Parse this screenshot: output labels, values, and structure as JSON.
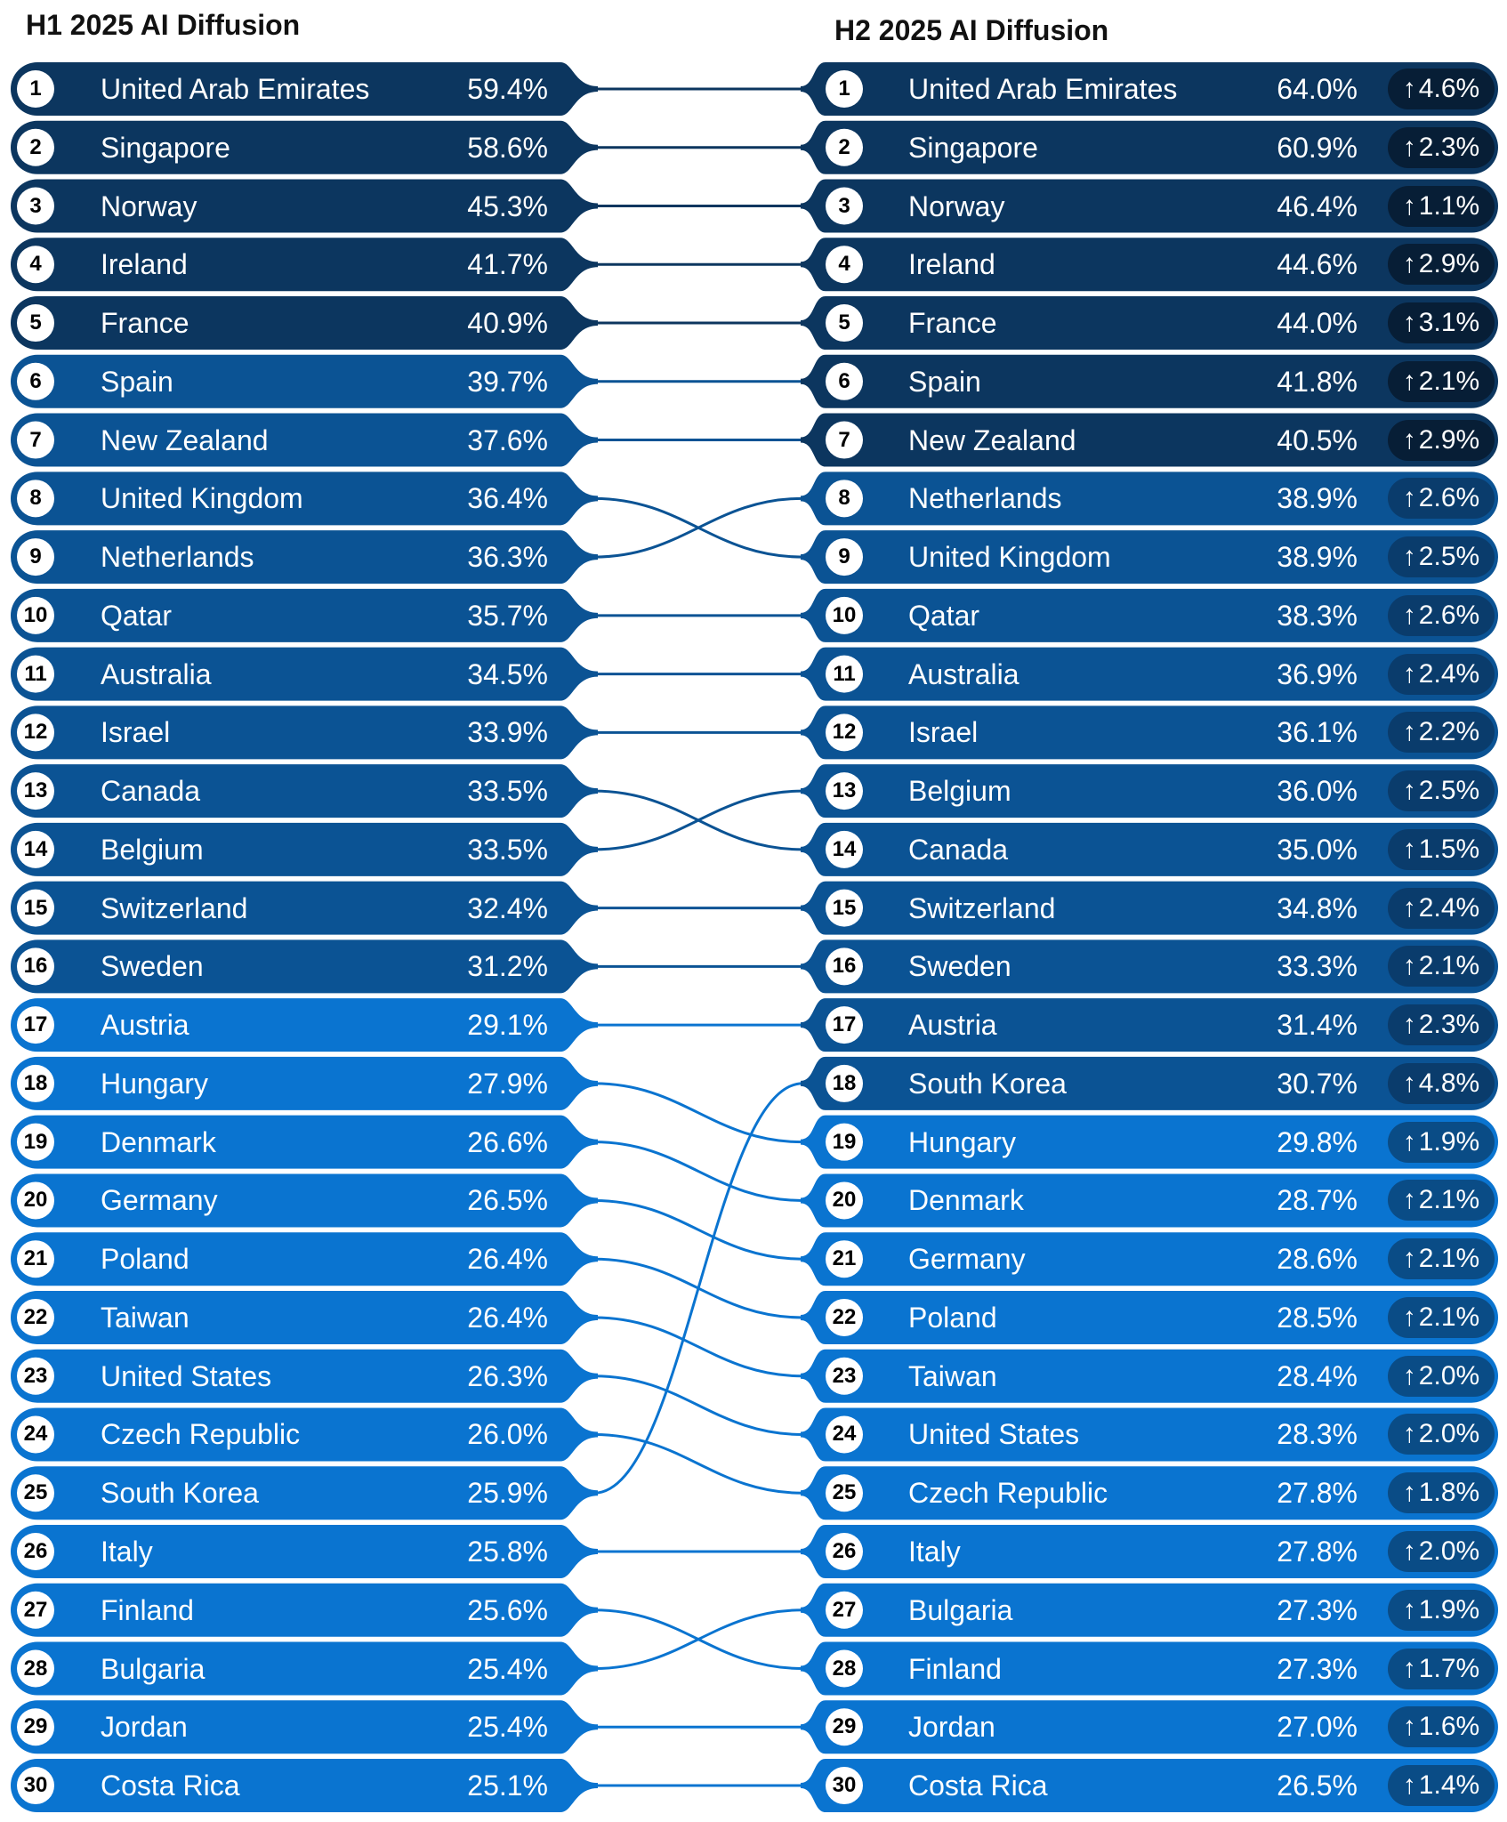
{
  "titles": {
    "left": "H1 2025 AI Diffusion",
    "right": "H2 2025 AI Diffusion"
  },
  "colors": {
    "dark": "#0c365f",
    "medium": "#0b5394",
    "bright": "#0a74d0",
    "badge_dark": "#071e36",
    "badge_medium": "#0a3c6c",
    "badge_bright": "#0a4c86",
    "circle": "#ffffff",
    "text": "#ffffff"
  },
  "change_icon": "arrow-up-icon",
  "chart_data": {
    "type": "table",
    "left": [
      {
        "rank": "1",
        "country": "United Arab Emirates",
        "value": "59.4%"
      },
      {
        "rank": "2",
        "country": "Singapore",
        "value": "58.6%"
      },
      {
        "rank": "3",
        "country": "Norway",
        "value": "45.3%"
      },
      {
        "rank": "4",
        "country": "Ireland",
        "value": "41.7%"
      },
      {
        "rank": "5",
        "country": "France",
        "value": "40.9%"
      },
      {
        "rank": "6",
        "country": "Spain",
        "value": "39.7%"
      },
      {
        "rank": "7",
        "country": "New Zealand",
        "value": "37.6%"
      },
      {
        "rank": "8",
        "country": "United Kingdom",
        "value": "36.4%"
      },
      {
        "rank": "9",
        "country": "Netherlands",
        "value": "36.3%"
      },
      {
        "rank": "10",
        "country": "Qatar",
        "value": "35.7%"
      },
      {
        "rank": "11",
        "country": "Australia",
        "value": "34.5%"
      },
      {
        "rank": "12",
        "country": "Israel",
        "value": "33.9%"
      },
      {
        "rank": "13",
        "country": "Canada",
        "value": "33.5%"
      },
      {
        "rank": "14",
        "country": "Belgium",
        "value": "33.5%"
      },
      {
        "rank": "15",
        "country": "Switzerland",
        "value": "32.4%"
      },
      {
        "rank": "16",
        "country": "Sweden",
        "value": "31.2%"
      },
      {
        "rank": "17",
        "country": "Austria",
        "value": "29.1%"
      },
      {
        "rank": "18",
        "country": "Hungary",
        "value": "27.9%"
      },
      {
        "rank": "19",
        "country": "Denmark",
        "value": "26.6%"
      },
      {
        "rank": "20",
        "country": "Germany",
        "value": "26.5%"
      },
      {
        "rank": "21",
        "country": "Poland",
        "value": "26.4%"
      },
      {
        "rank": "22",
        "country": "Taiwan",
        "value": "26.4%"
      },
      {
        "rank": "23",
        "country": "United States",
        "value": "26.3%"
      },
      {
        "rank": "24",
        "country": "Czech Republic",
        "value": "26.0%"
      },
      {
        "rank": "25",
        "country": "South Korea",
        "value": "25.9%"
      },
      {
        "rank": "26",
        "country": "Italy",
        "value": "25.8%"
      },
      {
        "rank": "27",
        "country": "Finland",
        "value": "25.6%"
      },
      {
        "rank": "28",
        "country": "Bulgaria",
        "value": "25.4%"
      },
      {
        "rank": "29",
        "country": "Jordan",
        "value": "25.4%"
      },
      {
        "rank": "30",
        "country": "Costa Rica",
        "value": "25.1%"
      }
    ],
    "right": [
      {
        "rank": "1",
        "country": "United Arab Emirates",
        "value": "64.0%",
        "change": "4.6%"
      },
      {
        "rank": "2",
        "country": "Singapore",
        "value": "60.9%",
        "change": "2.3%"
      },
      {
        "rank": "3",
        "country": "Norway",
        "value": "46.4%",
        "change": "1.1%"
      },
      {
        "rank": "4",
        "country": "Ireland",
        "value": "44.6%",
        "change": "2.9%"
      },
      {
        "rank": "5",
        "country": "France",
        "value": "44.0%",
        "change": "3.1%"
      },
      {
        "rank": "6",
        "country": "Spain",
        "value": "41.8%",
        "change": "2.1%"
      },
      {
        "rank": "7",
        "country": "New Zealand",
        "value": "40.5%",
        "change": "2.9%"
      },
      {
        "rank": "8",
        "country": "Netherlands",
        "value": "38.9%",
        "change": "2.6%"
      },
      {
        "rank": "9",
        "country": "United Kingdom",
        "value": "38.9%",
        "change": "2.5%"
      },
      {
        "rank": "10",
        "country": "Qatar",
        "value": "38.3%",
        "change": "2.6%"
      },
      {
        "rank": "11",
        "country": "Australia",
        "value": "36.9%",
        "change": "2.4%"
      },
      {
        "rank": "12",
        "country": "Israel",
        "value": "36.1%",
        "change": "2.2%"
      },
      {
        "rank": "13",
        "country": "Belgium",
        "value": "36.0%",
        "change": "2.5%"
      },
      {
        "rank": "14",
        "country": "Canada",
        "value": "35.0%",
        "change": "1.5%"
      },
      {
        "rank": "15",
        "country": "Switzerland",
        "value": "34.8%",
        "change": "2.4%"
      },
      {
        "rank": "16",
        "country": "Sweden",
        "value": "33.3%",
        "change": "2.1%"
      },
      {
        "rank": "17",
        "country": "Austria",
        "value": "31.4%",
        "change": "2.3%"
      },
      {
        "rank": "18",
        "country": "South Korea",
        "value": "30.7%",
        "change": "4.8%"
      },
      {
        "rank": "19",
        "country": "Hungary",
        "value": "29.8%",
        "change": "1.9%"
      },
      {
        "rank": "20",
        "country": "Denmark",
        "value": "28.7%",
        "change": "2.1%"
      },
      {
        "rank": "21",
        "country": "Germany",
        "value": "28.6%",
        "change": "2.1%"
      },
      {
        "rank": "22",
        "country": "Poland",
        "value": "28.5%",
        "change": "2.1%"
      },
      {
        "rank": "23",
        "country": "Taiwan",
        "value": "28.4%",
        "change": "2.0%"
      },
      {
        "rank": "24",
        "country": "United States",
        "value": "28.3%",
        "change": "2.0%"
      },
      {
        "rank": "25",
        "country": "Czech Republic",
        "value": "27.8%",
        "change": "1.8%"
      },
      {
        "rank": "26",
        "country": "Italy",
        "value": "27.8%",
        "change": "2.0%"
      },
      {
        "rank": "27",
        "country": "Bulgaria",
        "value": "27.3%",
        "change": "1.9%"
      },
      {
        "rank": "28",
        "country": "Finland",
        "value": "27.3%",
        "change": "1.7%"
      },
      {
        "rank": "29",
        "country": "Jordan",
        "value": "27.0%",
        "change": "1.6%"
      },
      {
        "rank": "30",
        "country": "Costa Rica",
        "value": "26.5%",
        "change": "1.4%"
      }
    ]
  }
}
